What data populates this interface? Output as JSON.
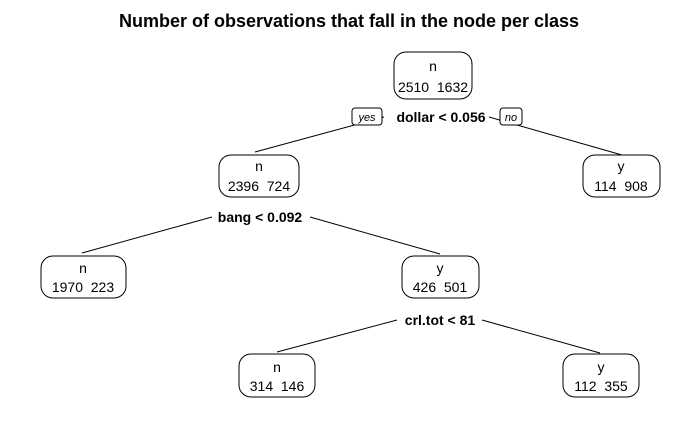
{
  "title": "Number of observations that fall in the node per class",
  "branch_labels": {
    "yes": "yes",
    "no": "no"
  },
  "nodes": [
    {
      "class": "n",
      "counts": "2510  1632"
    },
    {
      "class": "n",
      "counts": "2396  724"
    },
    {
      "class": "y",
      "counts": "114  908"
    },
    {
      "class": "n",
      "counts": "1970  223"
    },
    {
      "class": "y",
      "counts": "426  501"
    },
    {
      "class": "n",
      "counts": "314  146"
    },
    {
      "class": "y",
      "counts": "112  355"
    }
  ],
  "splits": [
    {
      "label": "dollar < 0.056"
    },
    {
      "label": "bang < 0.092"
    },
    {
      "label": "crl.tot < 81"
    }
  ]
}
